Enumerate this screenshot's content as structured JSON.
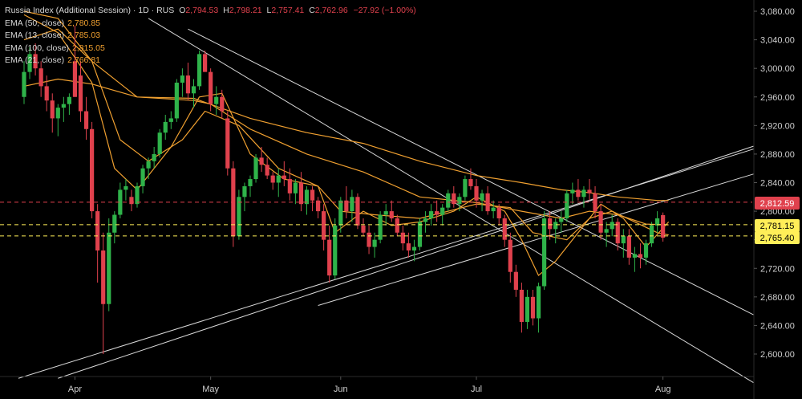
{
  "header": {
    "title": "Russia Index (Additional Session) · 1D · RUS",
    "ohlc": [
      {
        "k": "O",
        "v": "2,794.53"
      },
      {
        "k": "H",
        "v": "2,798.21"
      },
      {
        "k": "L",
        "v": "2,757.41"
      },
      {
        "k": "C",
        "v": "2,762.96"
      }
    ],
    "change": "−27.92 (−1.00%)"
  },
  "indicators": [
    {
      "label": "EMA (50, close)",
      "value": "2,780.85"
    },
    {
      "label": "EMA (13, close)",
      "value": "2,785.03"
    },
    {
      "label": "EMA (100, close)",
      "value": "2,815.05"
    },
    {
      "label": "EMA (21, close)",
      "value": "2,766.81"
    }
  ],
  "price_tags": [
    {
      "label": "2,812.59",
      "value": 2812.59,
      "color": "#e0414d",
      "text_color": "#ffffff",
      "line": "dashed-red"
    },
    {
      "label": "2,781.15",
      "value": 2781.15,
      "color": "#ffee58",
      "text_color": "#000000",
      "line": "dashed-yellow"
    },
    {
      "label": "2,765.40",
      "value": 2765.4,
      "color": "#ffee58",
      "text_color": "#000000",
      "line": "dashed-yellow"
    }
  ],
  "colors": {
    "up": "#2fb34a",
    "down": "#e0414d",
    "ema": "#f0a030",
    "trendline": "#d8d8d8",
    "background": "#000000",
    "axis_text": "#cfcfcf"
  },
  "chart_data": {
    "type": "candlestick",
    "title": "Russia Index (Additional Session)",
    "interval": "1D",
    "ylim": [
      2580,
      3090
    ],
    "yticks": [
      "3,080.00",
      "3,040.00",
      "3,000.00",
      "2,960.00",
      "2,920.00",
      "2,880.00",
      "2,840.00",
      "2,800.00",
      "2,760.00",
      "2,720.00",
      "2,680.00",
      "2,640.00",
      "2,600.00"
    ],
    "ytick_values": [
      3080,
      3040,
      3000,
      2960,
      2920,
      2880,
      2840,
      2800,
      2760,
      2720,
      2680,
      2640,
      2600
    ],
    "xticks": [
      {
        "label": "Apr",
        "index": 9
      },
      {
        "label": "May",
        "index": 33
      },
      {
        "label": "Jun",
        "index": 56
      },
      {
        "label": "Jul",
        "index": 80
      },
      {
        "label": "Aug",
        "index": 113
      }
    ],
    "grid": false,
    "candles": [
      [
        2960,
        3010,
        2950,
        2995
      ],
      [
        2995,
        3030,
        2985,
        3020
      ],
      [
        3020,
        3035,
        2990,
        3000
      ],
      [
        3000,
        3010,
        2960,
        2975
      ],
      [
        2975,
        2990,
        2940,
        2955
      ],
      [
        2955,
        2965,
        2910,
        2930
      ],
      [
        2930,
        2950,
        2905,
        2945
      ],
      [
        2945,
        2960,
        2925,
        2950
      ],
      [
        2950,
        2965,
        2935,
        2960
      ],
      [
        3010,
        3060,
        2960,
        2960
      ],
      [
        2990,
        3010,
        2925,
        2940
      ],
      [
        2940,
        2960,
        2900,
        2915
      ],
      [
        2915,
        2925,
        2790,
        2800
      ],
      [
        2800,
        2810,
        2700,
        2745
      ],
      [
        2745,
        2770,
        2600,
        2670
      ],
      [
        2670,
        2790,
        2660,
        2770
      ],
      [
        2770,
        2800,
        2755,
        2795
      ],
      [
        2795,
        2840,
        2790,
        2830
      ],
      [
        2830,
        2845,
        2815,
        2835
      ],
      [
        2820,
        2830,
        2800,
        2810
      ],
      [
        2810,
        2840,
        2805,
        2835
      ],
      [
        2835,
        2865,
        2825,
        2860
      ],
      [
        2860,
        2875,
        2845,
        2870
      ],
      [
        2870,
        2890,
        2860,
        2880
      ],
      [
        2880,
        2915,
        2875,
        2910
      ],
      [
        2910,
        2935,
        2900,
        2925
      ],
      [
        2925,
        2940,
        2915,
        2930
      ],
      [
        2930,
        2985,
        2925,
        2980
      ],
      [
        2980,
        3000,
        2960,
        2990
      ],
      [
        2990,
        3008,
        2955,
        2965
      ],
      [
        2965,
        2985,
        2945,
        2975
      ],
      [
        2975,
        3025,
        2970,
        3020
      ],
      [
        3020,
        3025,
        2995,
        2995
      ],
      [
        2995,
        3000,
        2940,
        2950
      ],
      [
        2950,
        2975,
        2935,
        2960
      ],
      [
        2960,
        2970,
        2930,
        2940
      ],
      [
        2930,
        2940,
        2850,
        2860
      ],
      [
        2860,
        2870,
        2750,
        2765
      ],
      [
        2765,
        2830,
        2760,
        2820
      ],
      [
        2820,
        2840,
        2800,
        2835
      ],
      [
        2835,
        2850,
        2820,
        2845
      ],
      [
        2845,
        2880,
        2840,
        2875
      ],
      [
        2875,
        2890,
        2855,
        2865
      ],
      [
        2865,
        2875,
        2845,
        2850
      ],
      [
        2850,
        2855,
        2830,
        2840
      ],
      [
        2840,
        2860,
        2820,
        2850
      ],
      [
        2850,
        2870,
        2835,
        2845
      ],
      [
        2845,
        2860,
        2815,
        2825
      ],
      [
        2825,
        2845,
        2810,
        2840
      ],
      [
        2840,
        2855,
        2800,
        2810
      ],
      [
        2810,
        2835,
        2795,
        2830
      ],
      [
        2830,
        2835,
        2800,
        2815
      ],
      [
        2815,
        2820,
        2790,
        2800
      ],
      [
        2800,
        2810,
        2745,
        2760
      ],
      [
        2760,
        2780,
        2700,
        2710
      ],
      [
        2710,
        2790,
        2705,
        2780
      ],
      [
        2780,
        2820,
        2770,
        2815
      ],
      [
        2815,
        2835,
        2790,
        2800
      ],
      [
        2800,
        2830,
        2785,
        2820
      ],
      [
        2820,
        2825,
        2775,
        2780
      ],
      [
        2780,
        2790,
        2765,
        2770
      ],
      [
        2770,
        2780,
        2740,
        2750
      ],
      [
        2750,
        2770,
        2735,
        2760
      ],
      [
        2760,
        2800,
        2755,
        2795
      ],
      [
        2795,
        2810,
        2780,
        2800
      ],
      [
        2800,
        2815,
        2785,
        2790
      ],
      [
        2790,
        2795,
        2765,
        2770
      ],
      [
        2770,
        2780,
        2745,
        2755
      ],
      [
        2755,
        2770,
        2735,
        2745
      ],
      [
        2745,
        2760,
        2730,
        2750
      ],
      [
        2750,
        2790,
        2745,
        2785
      ],
      [
        2785,
        2800,
        2770,
        2790
      ],
      [
        2790,
        2810,
        2780,
        2800
      ],
      [
        2800,
        2815,
        2785,
        2795
      ],
      [
        2795,
        2810,
        2780,
        2805
      ],
      [
        2805,
        2830,
        2800,
        2825
      ],
      [
        2825,
        2835,
        2805,
        2810
      ],
      [
        2810,
        2825,
        2800,
        2820
      ],
      [
        2820,
        2850,
        2815,
        2845
      ],
      [
        2845,
        2860,
        2830,
        2835
      ],
      [
        2835,
        2845,
        2805,
        2815
      ],
      [
        2815,
        2830,
        2800,
        2825
      ],
      [
        2825,
        2835,
        2795,
        2800
      ],
      [
        2800,
        2815,
        2790,
        2805
      ],
      [
        2805,
        2810,
        2780,
        2790
      ],
      [
        2790,
        2795,
        2750,
        2760
      ],
      [
        2760,
        2770,
        2700,
        2715
      ],
      [
        2715,
        2725,
        2680,
        2690
      ],
      [
        2690,
        2700,
        2630,
        2645
      ],
      [
        2645,
        2690,
        2635,
        2680
      ],
      [
        2680,
        2690,
        2640,
        2650
      ],
      [
        2650,
        2700,
        2630,
        2695
      ],
      [
        2695,
        2800,
        2690,
        2790
      ],
      [
        2790,
        2800,
        2760,
        2775
      ],
      [
        2775,
        2790,
        2755,
        2785
      ],
      [
        2785,
        2800,
        2770,
        2790
      ],
      [
        2790,
        2830,
        2785,
        2825
      ],
      [
        2825,
        2840,
        2810,
        2830
      ],
      [
        2830,
        2845,
        2815,
        2820
      ],
      [
        2820,
        2835,
        2805,
        2830
      ],
      [
        2830,
        2845,
        2815,
        2825
      ],
      [
        2825,
        2835,
        2790,
        2800
      ],
      [
        2800,
        2810,
        2760,
        2770
      ],
      [
        2770,
        2785,
        2750,
        2775
      ],
      [
        2775,
        2795,
        2765,
        2785
      ],
      [
        2785,
        2790,
        2745,
        2755
      ],
      [
        2755,
        2775,
        2735,
        2765
      ],
      [
        2765,
        2775,
        2725,
        2735
      ],
      [
        2735,
        2750,
        2715,
        2740
      ],
      [
        2740,
        2755,
        2720,
        2735
      ],
      [
        2735,
        2760,
        2725,
        2755
      ],
      [
        2755,
        2785,
        2750,
        2780
      ],
      [
        2780,
        2800,
        2770,
        2790
      ],
      [
        2794.53,
        2798.21,
        2757.41,
        2762.96
      ]
    ],
    "ema": [
      {
        "name": "EMA (100, close)",
        "values": [
          [
            0,
            2975
          ],
          [
            6,
            2985
          ],
          [
            12,
            2978
          ],
          [
            20,
            2960
          ],
          [
            30,
            2958
          ],
          [
            40,
            2930
          ],
          [
            50,
            2910
          ],
          [
            60,
            2895
          ],
          [
            70,
            2870
          ],
          [
            80,
            2850
          ],
          [
            88,
            2840
          ],
          [
            95,
            2830
          ],
          [
            100,
            2826
          ],
          [
            105,
            2820
          ],
          [
            112,
            2815
          ],
          [
            114,
            2815.05
          ]
        ]
      },
      {
        "name": "EMA (50, close)",
        "values": [
          [
            0,
            3040
          ],
          [
            6,
            3055
          ],
          [
            12,
            3010
          ],
          [
            20,
            2960
          ],
          [
            30,
            2955
          ],
          [
            33,
            2950
          ],
          [
            40,
            2915
          ],
          [
            50,
            2880
          ],
          [
            60,
            2855
          ],
          [
            70,
            2820
          ],
          [
            80,
            2812
          ],
          [
            88,
            2800
          ],
          [
            95,
            2790
          ],
          [
            100,
            2800
          ],
          [
            105,
            2795
          ],
          [
            110,
            2782
          ],
          [
            114,
            2780.85
          ]
        ]
      },
      {
        "name": "EMA (21, close)",
        "values": [
          [
            0,
            3080
          ],
          [
            6,
            3070
          ],
          [
            12,
            3010
          ],
          [
            17,
            2900
          ],
          [
            22,
            2870
          ],
          [
            28,
            2900
          ],
          [
            32,
            2940
          ],
          [
            38,
            2920
          ],
          [
            45,
            2860
          ],
          [
            52,
            2835
          ],
          [
            56,
            2800
          ],
          [
            62,
            2795
          ],
          [
            70,
            2790
          ],
          [
            80,
            2810
          ],
          [
            86,
            2805
          ],
          [
            90,
            2770
          ],
          [
            96,
            2760
          ],
          [
            100,
            2790
          ],
          [
            104,
            2800
          ],
          [
            108,
            2785
          ],
          [
            112,
            2770
          ],
          [
            114,
            2766.81
          ]
        ]
      },
      {
        "name": "EMA (13, close)",
        "values": [
          [
            0,
            3075
          ],
          [
            6,
            3050
          ],
          [
            12,
            2980
          ],
          [
            16,
            2860
          ],
          [
            20,
            2830
          ],
          [
            26,
            2890
          ],
          [
            31,
            2960
          ],
          [
            35,
            2965
          ],
          [
            40,
            2880
          ],
          [
            46,
            2845
          ],
          [
            52,
            2835
          ],
          [
            55,
            2770
          ],
          [
            60,
            2800
          ],
          [
            65,
            2780
          ],
          [
            70,
            2785
          ],
          [
            76,
            2800
          ],
          [
            80,
            2820
          ],
          [
            85,
            2800
          ],
          [
            88,
            2760
          ],
          [
            91,
            2710
          ],
          [
            94,
            2730
          ],
          [
            98,
            2770
          ],
          [
            102,
            2810
          ],
          [
            106,
            2790
          ],
          [
            110,
            2750
          ],
          [
            114,
            2785.03
          ]
        ]
      }
    ],
    "trendlines": [
      {
        "from": [
          -1,
          2566
        ],
        "to": [
          129,
          2887
        ]
      },
      {
        "from": [
          6,
          2566
        ],
        "to": [
          129,
          2891
        ]
      },
      {
        "from": [
          52,
          2668
        ],
        "to": [
          129,
          2852
        ]
      },
      {
        "from": [
          22,
          3070
        ],
        "to": [
          129,
          2560
        ]
      },
      {
        "from": [
          29,
          3055
        ],
        "to": [
          129,
          2655
        ]
      }
    ]
  }
}
